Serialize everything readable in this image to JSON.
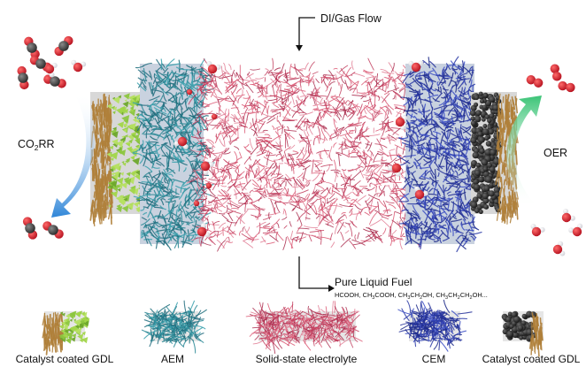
{
  "labels": {
    "top_flow": "DI/Gas Flow",
    "left_reaction": "CO",
    "left_reaction_sub": "2",
    "left_reaction_tail": "RR",
    "right_reaction": "OER",
    "bottom_flow": "Pure Liquid Fuel"
  },
  "fuel_products": [
    {
      "t": "HCOOH, CH"
    },
    {
      "t": "3",
      "sub": true
    },
    {
      "t": "COOH, CH"
    },
    {
      "t": "3",
      "sub": true
    },
    {
      "t": "CH"
    },
    {
      "t": "2",
      "sub": true
    },
    {
      "t": "OH, CH"
    },
    {
      "t": "3",
      "sub": true
    },
    {
      "t": "CH"
    },
    {
      "t": "2",
      "sub": true
    },
    {
      "t": "CH"
    },
    {
      "t": "2",
      "sub": true
    },
    {
      "t": "OH..."
    }
  ],
  "legend": [
    {
      "key": "gdl-left",
      "label": "Catalyst coated GDL"
    },
    {
      "key": "aem",
      "label": "AEM"
    },
    {
      "key": "sse",
      "label": "Solid-state electrolyte"
    },
    {
      "key": "cem",
      "label": "CEM"
    },
    {
      "key": "gdl-right",
      "label": "Catalyst coated GDL"
    }
  ],
  "colors": {
    "gdl_fiber": "#b0803a",
    "catalyst_green": "#8cc63f",
    "aem_teal": "#2d8a96",
    "electrolyte_red": "#c0395a",
    "cem_blue": "#2a3aa6",
    "catalyst_black": "#2b2b2b",
    "arrow_blue": "#2f86d8",
    "arrow_green": "#3cc477",
    "oxygen_red": "#d01c2a",
    "carbon_grey": "#444444"
  }
}
